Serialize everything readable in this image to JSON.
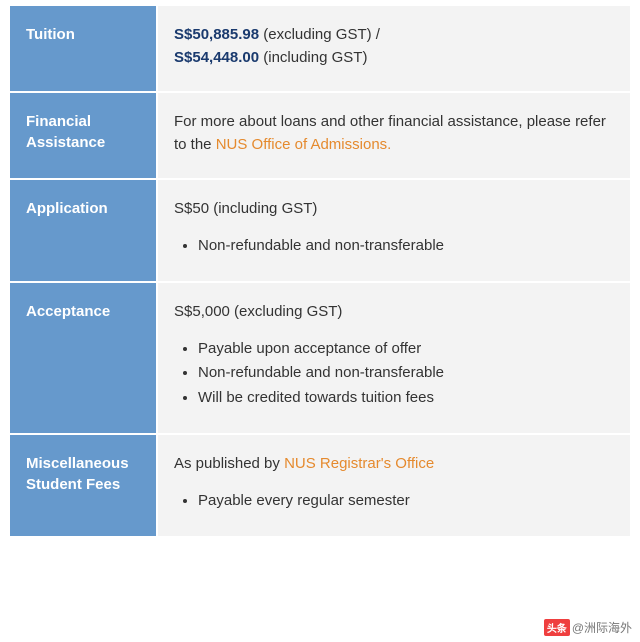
{
  "colors": {
    "label_bg": "#6699cc",
    "label_text": "#ffffff",
    "content_bg": "#f3f3f3",
    "content_text": "#333333",
    "emphasis_text": "#1a3a6e",
    "link_text": "#e58a2e",
    "border": "#ffffff"
  },
  "typography": {
    "label_fontsize": 15,
    "label_fontweight": 600,
    "content_fontsize": 15
  },
  "rows": {
    "tuition": {
      "label": "Tuition",
      "emph1": "S$50,885.98",
      "after1": " (excluding GST) /",
      "emph2": "S$54,448.00",
      "after2": " (including GST)"
    },
    "financial": {
      "label": "Financial Assistance",
      "text_before": "For more about loans and other financial assistance, please refer to the ",
      "link": "NUS Office of Admissions."
    },
    "application": {
      "label": "Application",
      "headline": "S$50 (including GST)",
      "bullets": {
        "0": "Non-refundable and non-transferable"
      }
    },
    "acceptance": {
      "label": "Acceptance",
      "headline": "S$5,000 (excluding GST)",
      "bullets": {
        "0": "Payable upon acceptance of offer",
        "1": "Non-refundable and non-transferable",
        "2": "Will be credited towards tuition fees"
      }
    },
    "misc": {
      "label": "Miscellaneous Student Fees",
      "text_before": "As published by ",
      "link": "NUS Registrar's Office",
      "bullets": {
        "0": "Payable every regular semester"
      }
    }
  },
  "watermark": {
    "logo": "头条",
    "text": "@洲际海外"
  }
}
